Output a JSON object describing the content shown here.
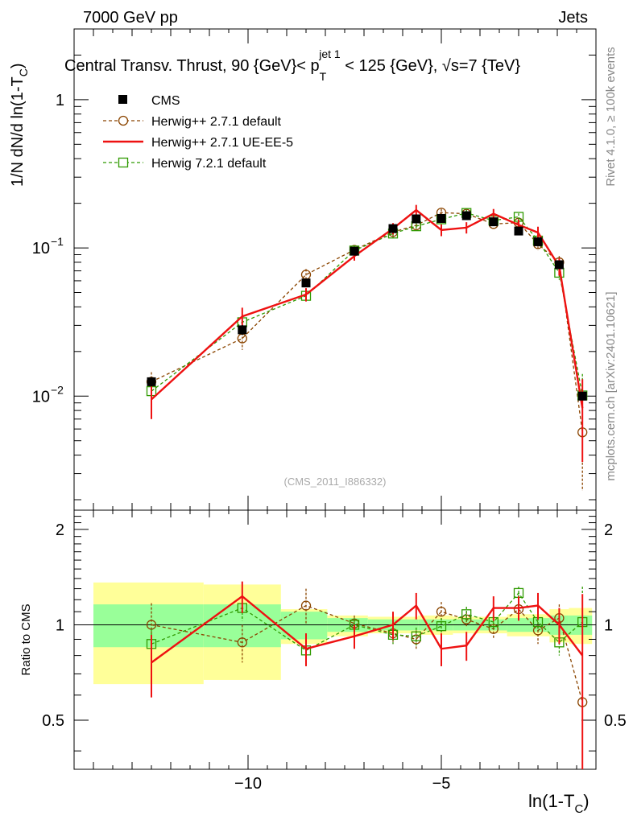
{
  "header": {
    "left": "7000 GeV pp",
    "right": "Jets",
    "title": "Central Transv. Thrust, 90 {GeV}< p",
    "title_sub": "T",
    "title_sup": "jet 1",
    "title_tail": " < 125 {GeV}, √s=7 {TeV}",
    "side_top": "Rivet 4.1.0, ≥ 100k events",
    "side_bottom": "mcplots.cern.ch [arXiv:2401.10621]",
    "watermark": "(CMS_2011_I886332)"
  },
  "legend": [
    {
      "label": "CMS",
      "color": "#000000",
      "style": "data"
    },
    {
      "label": "Herwig++ 2.7.1 default",
      "color": "#8b4500",
      "style": "dash-circle"
    },
    {
      "label": "Herwig++ 2.7.1 UE-EE-5",
      "color": "#ee1111",
      "style": "solid"
    },
    {
      "label": "Herwig 7.2.1 default",
      "color": "#2e9a00",
      "style": "dash-square"
    }
  ],
  "chart_data": {
    "type": "line",
    "ylabel_main": "1/N    dN/d ln(1-T",
    "ylabel_main_sub": "C",
    "ylabel_main_tail": ")",
    "ylabel_ratio": "Ratio to CMS",
    "xlabel": "ln(1-T",
    "xlabel_sub": "C",
    "xlabel_tail": ")",
    "xlim": [
      -14.5,
      -1.0
    ],
    "ylim_main": [
      0.0017,
      3.0
    ],
    "ylim_ratio": [
      0.35,
      2.3
    ],
    "xticks": [
      {
        "v": -10,
        "label": "−10"
      },
      {
        "v": -5,
        "label": "−5"
      }
    ],
    "yticks_main": [
      {
        "v": 1,
        "label": "1"
      },
      {
        "v": 0.1,
        "label": "10",
        "sup": "−1"
      },
      {
        "v": 0.01,
        "label": "10",
        "sup": "−2"
      }
    ],
    "yticks_ratio": [
      {
        "v": 2,
        "label": "2"
      },
      {
        "v": 1,
        "label": "1"
      },
      {
        "v": 0.5,
        "label": "0.5"
      }
    ],
    "x": [
      -12.5,
      -10.15,
      -8.5,
      -7.25,
      -6.25,
      -5.65,
      -5.0,
      -4.35,
      -3.65,
      -3.0,
      -2.5,
      -1.95,
      -1.35
    ],
    "bands": [
      {
        "x0": -14.0,
        "x1": -11.15,
        "green": [
          0.85,
          1.16
        ],
        "yellow": [
          0.65,
          1.36
        ]
      },
      {
        "x0": -11.15,
        "x1": -9.15,
        "green": [
          0.85,
          1.16
        ],
        "yellow": [
          0.67,
          1.34
        ]
      },
      {
        "x0": -9.15,
        "x1": -7.95,
        "green": [
          0.9,
          1.1
        ],
        "yellow": [
          0.87,
          1.12
        ]
      },
      {
        "x0": -7.95,
        "x1": -6.9,
        "green": [
          0.95,
          1.05
        ],
        "yellow": [
          0.92,
          1.07
        ]
      },
      {
        "x0": -6.9,
        "x1": -5.6,
        "green": [
          0.96,
          1.04
        ],
        "yellow": [
          0.94,
          1.06
        ]
      },
      {
        "x0": -5.6,
        "x1": -4.7,
        "green": [
          0.96,
          1.04
        ],
        "yellow": [
          0.93,
          1.07
        ]
      },
      {
        "x0": -4.7,
        "x1": -3.3,
        "green": [
          0.96,
          1.04
        ],
        "yellow": [
          0.94,
          1.06
        ]
      },
      {
        "x0": -3.3,
        "x1": -2.2,
        "green": [
          0.95,
          1.05
        ],
        "yellow": [
          0.92,
          1.08
        ]
      },
      {
        "x0": -2.2,
        "x1": -1.7,
        "green": [
          0.93,
          1.07
        ],
        "yellow": [
          0.88,
          1.12
        ]
      },
      {
        "x0": -1.7,
        "x1": -1.1,
        "green": [
          0.93,
          1.07
        ],
        "yellow": [
          0.87,
          1.13
        ]
      }
    ],
    "series": [
      {
        "name": "CMS",
        "style": "data",
        "values": [
          0.0125,
          0.028,
          0.058,
          0.095,
          0.135,
          0.157,
          0.158,
          0.165,
          0.15,
          0.13,
          0.11,
          0.077,
          0.01
        ],
        "err_lo": [
          0.0009,
          0.0022,
          0.003,
          0.005,
          0.007,
          0.007,
          0.007,
          0.007,
          0.007,
          0.006,
          0.006,
          0.005,
          0.0006
        ],
        "err_hi": [
          0.0009,
          0.0022,
          0.003,
          0.005,
          0.007,
          0.007,
          0.007,
          0.007,
          0.007,
          0.006,
          0.006,
          0.005,
          0.0006
        ],
        "ratio": [
          1,
          1,
          1,
          1,
          1,
          1,
          1,
          1,
          1,
          1,
          1,
          1,
          1
        ]
      },
      {
        "name": "Herwig++ 2.7.1 default",
        "style": "dash-circle",
        "values": [
          0.0125,
          0.0245,
          0.066,
          0.097,
          0.128,
          0.142,
          0.173,
          0.17,
          0.145,
          0.148,
          0.106,
          0.08,
          0.0057
        ],
        "err_lo": [
          0.002,
          0.004,
          0.006,
          0.006,
          0.01,
          0.01,
          0.01,
          0.01,
          0.01,
          0.01,
          0.01,
          0.008,
          0.0034
        ],
        "err_hi": [
          0.002,
          0.004,
          0.006,
          0.006,
          0.01,
          0.01,
          0.01,
          0.01,
          0.01,
          0.01,
          0.01,
          0.008,
          0.0034
        ],
        "ratio": [
          1.0,
          0.88,
          1.15,
          1.01,
          0.94,
          0.9,
          1.1,
          1.04,
          0.97,
          1.12,
          0.96,
          1.05,
          0.57
        ],
        "ratio_lo": [
          0.17,
          0.12,
          0.15,
          0.06,
          0.07,
          0.06,
          0.08,
          0.06,
          0.07,
          0.07,
          0.09,
          0.11,
          0.36
        ],
        "ratio_hi": [
          0.17,
          0.12,
          0.15,
          0.06,
          0.07,
          0.06,
          0.08,
          0.06,
          0.07,
          0.07,
          0.09,
          0.11,
          0.36
        ]
      },
      {
        "name": "Herwig++ 2.7.1 UE-EE-5",
        "style": "solid",
        "values": [
          0.0095,
          0.0345,
          0.0485,
          0.088,
          0.135,
          0.18,
          0.132,
          0.137,
          0.17,
          0.143,
          0.127,
          0.075,
          0.0083
        ],
        "err_lo": [
          0.0025,
          0.005,
          0.005,
          0.006,
          0.012,
          0.015,
          0.012,
          0.012,
          0.013,
          0.012,
          0.012,
          0.01,
          0.0047
        ],
        "err_hi": [
          0.0025,
          0.005,
          0.005,
          0.006,
          0.012,
          0.015,
          0.012,
          0.012,
          0.013,
          0.012,
          0.012,
          0.01,
          0.0047
        ],
        "ratio": [
          0.76,
          1.23,
          0.84,
          0.92,
          1.0,
          1.15,
          0.84,
          0.86,
          1.13,
          1.13,
          1.15,
          1.0,
          0.8
        ],
        "ratio_lo": [
          0.17,
          0.14,
          0.1,
          0.08,
          0.1,
          0.11,
          0.1,
          0.09,
          0.1,
          0.1,
          0.11,
          0.13,
          0.45
        ],
        "ratio_hi": [
          0.17,
          0.14,
          0.1,
          0.08,
          0.1,
          0.11,
          0.1,
          0.09,
          0.1,
          0.1,
          0.11,
          0.13,
          0.45
        ]
      },
      {
        "name": "Herwig 7.2.1 default",
        "style": "dash-square",
        "values": [
          0.0108,
          0.0315,
          0.0475,
          0.096,
          0.125,
          0.14,
          0.156,
          0.172,
          0.153,
          0.162,
          0.112,
          0.068,
          0.0101
        ],
        "err_lo": [
          0.0015,
          0.003,
          0.004,
          0.006,
          0.009,
          0.009,
          0.009,
          0.009,
          0.009,
          0.009,
          0.009,
          0.007,
          0.004
        ],
        "err_hi": [
          0.0015,
          0.003,
          0.004,
          0.006,
          0.009,
          0.009,
          0.009,
          0.009,
          0.009,
          0.009,
          0.009,
          0.007,
          0.004
        ],
        "ratio": [
          0.87,
          1.13,
          0.83,
          1.0,
          0.93,
          0.92,
          0.99,
          1.08,
          1.02,
          1.26,
          1.02,
          0.88,
          1.02
        ],
        "ratio_lo": [
          0.1,
          0.1,
          0.07,
          0.05,
          0.06,
          0.06,
          0.06,
          0.06,
          0.06,
          0.06,
          0.06,
          0.08,
          0.3
        ],
        "ratio_hi": [
          0.1,
          0.1,
          0.07,
          0.05,
          0.06,
          0.06,
          0.06,
          0.06,
          0.06,
          0.06,
          0.06,
          0.08,
          0.3
        ]
      }
    ]
  }
}
